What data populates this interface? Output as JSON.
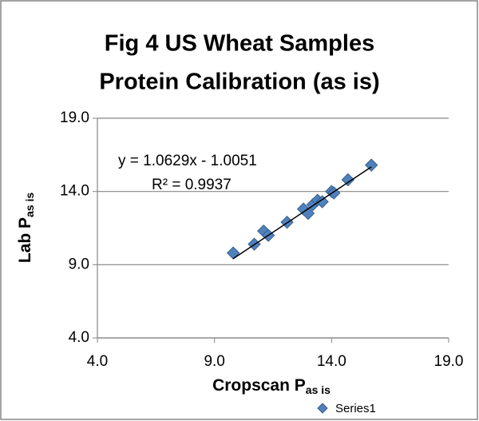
{
  "chart_data": {
    "type": "scatter",
    "title": [
      "Fig 4 US Wheat Samples",
      "Protein Calibration (as is)"
    ],
    "x_label": "Cropscan P",
    "x_label_sub": "as is",
    "y_label": "Lab P",
    "y_label_sub": "as is",
    "xlim": [
      4,
      19
    ],
    "ylim": [
      4,
      19
    ],
    "xticks": [
      {
        "value": 4,
        "label": "4.0"
      },
      {
        "value": 9,
        "label": "9.0"
      },
      {
        "value": 14,
        "label": "14.0"
      },
      {
        "value": 19,
        "label": "19.0"
      }
    ],
    "yticks": [
      {
        "value": 4,
        "label": "4.0"
      },
      {
        "value": 9,
        "label": "9.0"
      },
      {
        "value": 14,
        "label": "14.0"
      },
      {
        "value": 19,
        "label": "19.0"
      }
    ],
    "grid": true,
    "legend": "bottom",
    "series": [
      {
        "name": "Series1",
        "color": "#4f81bd",
        "x": [
          9.8,
          10.7,
          11.1,
          11.3,
          12.1,
          12.8,
          13.0,
          13.2,
          13.4,
          13.6,
          14.0,
          14.1,
          14.7,
          15.7
        ],
        "values": [
          9.8,
          10.4,
          11.3,
          11.0,
          11.9,
          12.8,
          12.5,
          13.1,
          13.4,
          13.3,
          14.0,
          13.9,
          14.8,
          15.8
        ]
      }
    ],
    "trendline": {
      "slope": 1.0629,
      "intercept": -1.0051,
      "equation": "y = 1.0629x - 1.0051",
      "r2": "R² = 0.9937",
      "color": "#000000"
    }
  }
}
